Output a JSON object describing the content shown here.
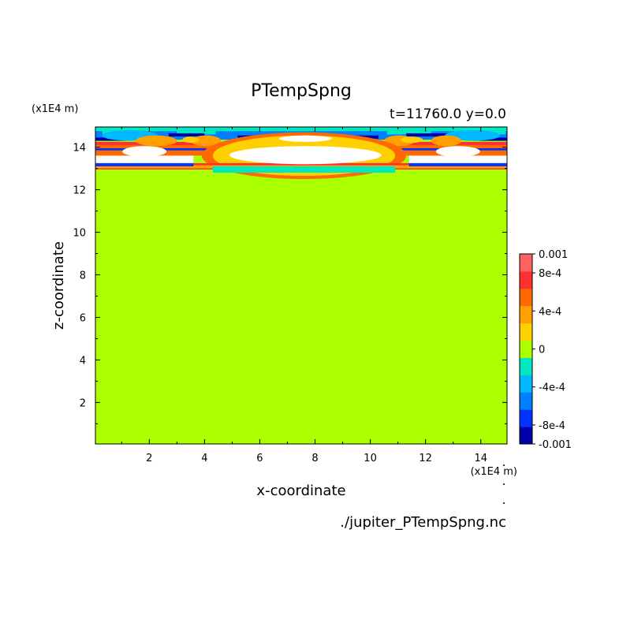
{
  "chart_data": {
    "type": "heatmap",
    "title": "PTempSpng",
    "subtitle": "t=11760.0 y=0.0",
    "xlabel": "x-coordinate",
    "ylabel": "z-coordinate",
    "x_unit": "(x1E4 m)",
    "y_unit": "(x1E4 m)",
    "source_file": "./jupiter_PTempSpng.nc",
    "xlim": [
      0.05,
      14.95
    ],
    "ylim": [
      0.05,
      14.95
    ],
    "xticks": [
      "2",
      "4",
      "6",
      "8",
      "10",
      "12",
      "14"
    ],
    "yticks": [
      "2",
      "4",
      "6",
      "8",
      "10",
      "12",
      "14"
    ],
    "background_value": 0,
    "colorbar": {
      "min": -0.001,
      "max": 0.001,
      "labels": [
        "0.001",
        "8e-4",
        "4e-4",
        "0",
        "-4e-4",
        "-8e-4",
        "-0.001"
      ],
      "label_values": [
        0.001,
        0.0008,
        0.0004,
        0,
        -0.0004,
        -0.0008,
        -0.001
      ],
      "colors": [
        "#0000aa",
        "#0033ff",
        "#0080ff",
        "#00b8ff",
        "#00e8c0",
        "#aaff00",
        "#ffd000",
        "#ffa000",
        "#ff6a00",
        "#ff3030",
        "#ff6060"
      ]
    },
    "features": [
      {
        "kind": "white",
        "x": [
          0.05,
          3.6
        ],
        "z": [
          13.0,
          13.9
        ]
      },
      {
        "kind": "white",
        "x": [
          11.4,
          14.95
        ],
        "z": [
          13.0,
          13.9
        ]
      },
      {
        "kind": "white",
        "x": [
          4.9,
          10.4
        ],
        "z": [
          13.2,
          14.05
        ]
      },
      {
        "kind": "white",
        "x": [
          6.7,
          8.6
        ],
        "z": [
          14.25,
          14.55
        ]
      },
      {
        "kind": "negative",
        "x": [
          4.3,
          10.9
        ],
        "z": [
          12.8,
          13.1
        ]
      }
    ]
  }
}
